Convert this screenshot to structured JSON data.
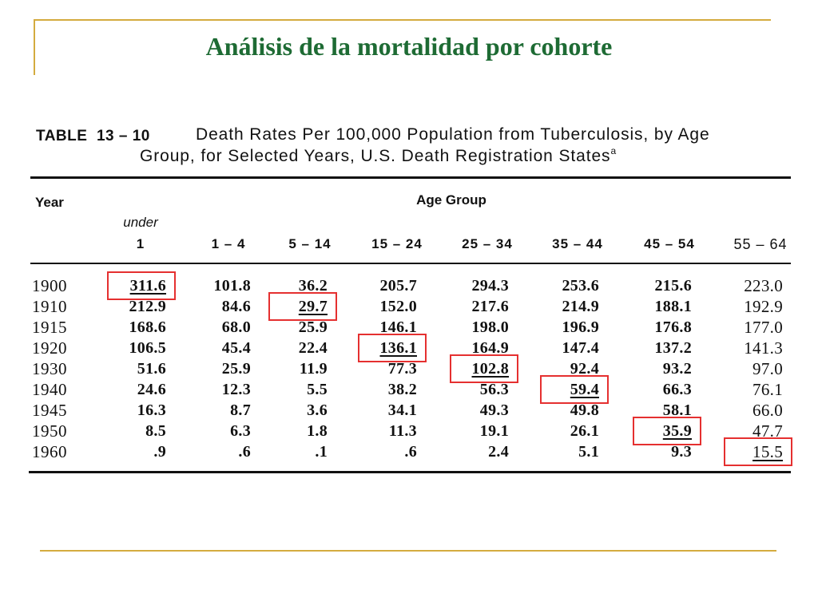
{
  "slide": {
    "title": "Análisis de la mortalidad por cohorte"
  },
  "table": {
    "label": "TABLE  13 – 10",
    "caption_line1": "Death Rates Per 100,000 Population from Tuberculosis, by Age",
    "caption_line2": "Group, for Selected Years, U.S. Death Registration States",
    "caption_footnote_marker": "a",
    "year_header": "Year",
    "group_header": "Age Group",
    "age_columns": [
      {
        "top": "under",
        "label": "1"
      },
      {
        "label": "1 – 4"
      },
      {
        "label": "5 – 14"
      },
      {
        "label": "15 – 24"
      },
      {
        "label": "25 – 34"
      },
      {
        "label": "35 – 44"
      },
      {
        "label": "45 – 54"
      },
      {
        "label": "55 – 64"
      }
    ],
    "rows": [
      {
        "year": "1900",
        "values": [
          "311.6",
          "101.8",
          "36.2",
          "205.7",
          "294.3",
          "253.6",
          "215.6",
          "223.0"
        ]
      },
      {
        "year": "1910",
        "values": [
          "212.9",
          "84.6",
          "29.7",
          "152.0",
          "217.6",
          "214.9",
          "188.1",
          "192.9"
        ]
      },
      {
        "year": "1915",
        "values": [
          "168.6",
          "68.0",
          "25.9",
          "146.1",
          "198.0",
          "196.9",
          "176.8",
          "177.0"
        ]
      },
      {
        "year": "1920",
        "values": [
          "106.5",
          "45.4",
          "22.4",
          "136.1",
          "164.9",
          "147.4",
          "137.2",
          "141.3"
        ]
      },
      {
        "year": "1930",
        "values": [
          "51.6",
          "25.9",
          "11.9",
          "77.3",
          "102.8",
          "92.4",
          "93.2",
          "97.0"
        ]
      },
      {
        "year": "1940",
        "values": [
          "24.6",
          "12.3",
          "5.5",
          "38.2",
          "56.3",
          "59.4",
          "66.3",
          "76.1"
        ]
      },
      {
        "year": "1945",
        "values": [
          "16.3",
          "8.7",
          "3.6",
          "34.1",
          "49.3",
          "49.8",
          "58.1",
          "66.0"
        ]
      },
      {
        "year": "1950",
        "values": [
          "8.5",
          "6.3",
          "1.8",
          "11.3",
          "19.1",
          "26.1",
          "35.9",
          "47.7"
        ]
      },
      {
        "year": "1960",
        "values": [
          ".9",
          ".6",
          ".1",
          ".6",
          "2.4",
          "5.1",
          "9.3",
          "15.5"
        ]
      }
    ],
    "cohort_highlights": [
      [
        0,
        0
      ],
      [
        1,
        2
      ],
      [
        3,
        3
      ],
      [
        4,
        4
      ],
      [
        5,
        5
      ],
      [
        7,
        6
      ],
      [
        8,
        7
      ]
    ],
    "highlight_color": "#e53030"
  },
  "colors": {
    "title": "#1e6b34",
    "frame_gold": "#d4ab3f",
    "ink": "#111111"
  }
}
